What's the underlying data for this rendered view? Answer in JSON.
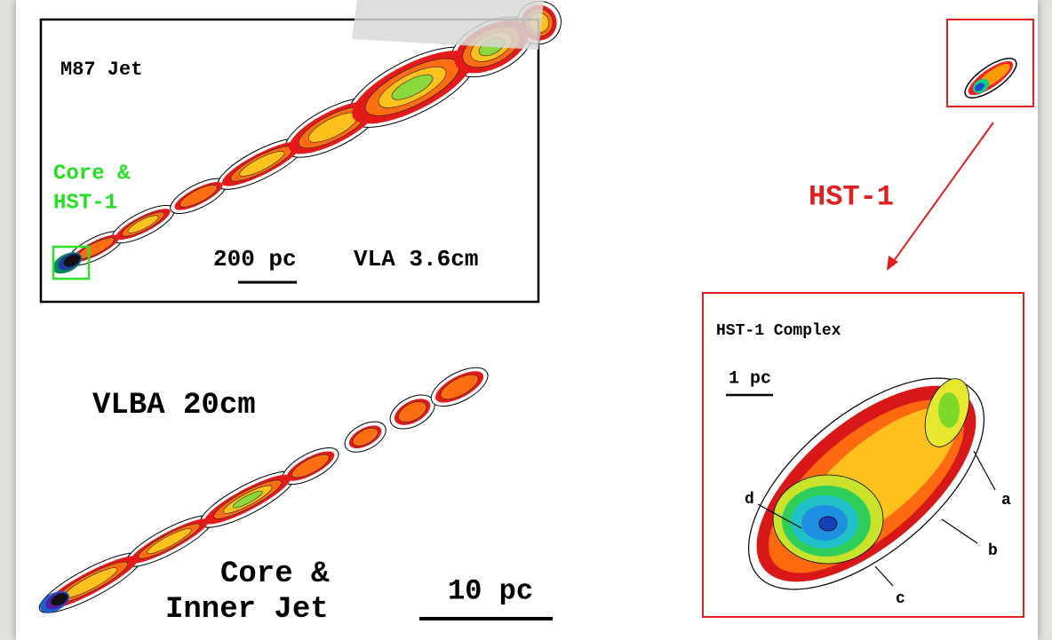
{
  "vla_panel": {
    "title": "M87 Jet",
    "core_label": [
      "Core &",
      "HST-1"
    ],
    "scale": "200 pc",
    "instrument": "VLA 3.6cm"
  },
  "vlba_panel": {
    "instrument": "VLBA 20cm",
    "core_label": [
      "Core &",
      "Inner Jet"
    ],
    "scale": "10 pc"
  },
  "callout": {
    "label": "HST-1"
  },
  "hst1_panel": {
    "title": "HST-1 Complex",
    "scale": "1 pc",
    "components": [
      "a",
      "b",
      "c",
      "d"
    ]
  }
}
